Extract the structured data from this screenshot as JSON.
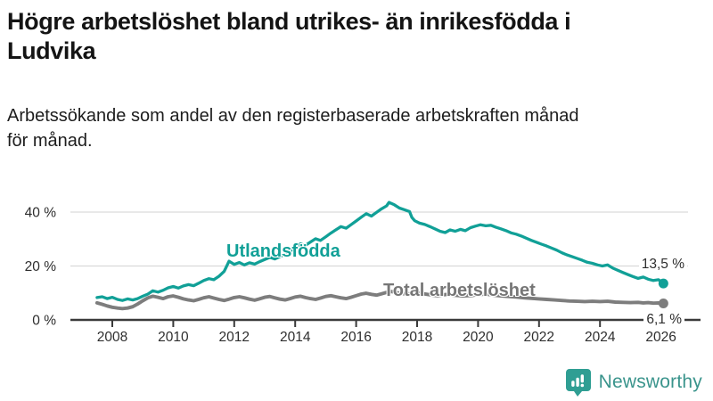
{
  "title_lines": [
    "Högre arbetslöshet bland utrikes- än inrikesfödda i",
    "Ludvika"
  ],
  "subtitle_lines": [
    "Arbetssökande som andel av den registerbaserade arbetskraften månad",
    "för månad."
  ],
  "footer": {
    "brand": "Newsworthy",
    "logo_icon": "bar-chart-speech-bubble-icon"
  },
  "colors": {
    "series_foreign_born": "#11A097",
    "series_total": "#7D7D7D",
    "grid": "#D9D9D9",
    "axis": "#3A3A3A",
    "text": "#1A1A1A",
    "brand_teal": "#2F9E93"
  },
  "chart_data": {
    "type": "line",
    "title": "Högre arbetslöshet bland utrikes- än inrikesfödda i Ludvika",
    "subtitle": "Arbetssökande som andel av den registerbaserade arbetskraften månad för månad.",
    "unit": "%",
    "grid": "horizontal",
    "legend_position": "inline-labels",
    "xlim": [
      2007.3,
      2026.4
    ],
    "ylim": [
      0,
      46
    ],
    "x_ticks": [
      2008,
      2010,
      2012,
      2014,
      2016,
      2018,
      2020,
      2022,
      2024,
      2026
    ],
    "x_tick_labels": [
      "2008",
      "2010",
      "2012",
      "2014",
      "2016",
      "2018",
      "2020",
      "2022",
      "2024",
      "2026"
    ],
    "y_ticks": [
      0,
      20,
      40
    ],
    "y_tick_labels": [
      "0 %",
      "20 %",
      "40 %"
    ],
    "series": [
      {
        "name": "Utlandsfödda",
        "color": "#11A097",
        "end_value": 13.5,
        "end_label": "13,5 %",
        "points": [
          [
            2007.5,
            8.3
          ],
          [
            2007.67,
            8.6
          ],
          [
            2007.83,
            7.9
          ],
          [
            2008.0,
            8.4
          ],
          [
            2008.17,
            7.6
          ],
          [
            2008.33,
            7.2
          ],
          [
            2008.5,
            7.8
          ],
          [
            2008.67,
            7.4
          ],
          [
            2008.83,
            7.9
          ],
          [
            2009.0,
            8.8
          ],
          [
            2009.17,
            9.6
          ],
          [
            2009.33,
            10.8
          ],
          [
            2009.5,
            10.3
          ],
          [
            2009.67,
            11.0
          ],
          [
            2009.83,
            11.9
          ],
          [
            2010.0,
            12.4
          ],
          [
            2010.17,
            11.8
          ],
          [
            2010.33,
            12.6
          ],
          [
            2010.5,
            13.1
          ],
          [
            2010.67,
            12.7
          ],
          [
            2010.83,
            13.6
          ],
          [
            2011.0,
            14.6
          ],
          [
            2011.17,
            15.3
          ],
          [
            2011.33,
            14.9
          ],
          [
            2011.5,
            16.2
          ],
          [
            2011.67,
            18.0
          ],
          [
            2011.83,
            21.8
          ],
          [
            2012.0,
            20.6
          ],
          [
            2012.17,
            21.3
          ],
          [
            2012.33,
            20.4
          ],
          [
            2012.5,
            21.2
          ],
          [
            2012.67,
            20.7
          ],
          [
            2012.83,
            21.6
          ],
          [
            2013.0,
            22.4
          ],
          [
            2013.17,
            23.2
          ],
          [
            2013.33,
            22.6
          ],
          [
            2013.5,
            23.5
          ],
          [
            2013.67,
            24.3
          ],
          [
            2013.83,
            25.4
          ],
          [
            2014.0,
            26.8
          ],
          [
            2014.17,
            28.2
          ],
          [
            2014.33,
            27.6
          ],
          [
            2014.5,
            28.9
          ],
          [
            2014.67,
            30.1
          ],
          [
            2014.83,
            29.5
          ],
          [
            2015.0,
            30.8
          ],
          [
            2015.17,
            32.2
          ],
          [
            2015.33,
            33.4
          ],
          [
            2015.5,
            34.6
          ],
          [
            2015.67,
            34.0
          ],
          [
            2015.83,
            35.3
          ],
          [
            2016.0,
            36.7
          ],
          [
            2016.17,
            38.1
          ],
          [
            2016.33,
            39.4
          ],
          [
            2016.5,
            38.5
          ],
          [
            2016.67,
            39.9
          ],
          [
            2016.83,
            41.2
          ],
          [
            2017.0,
            42.3
          ],
          [
            2017.08,
            43.6
          ],
          [
            2017.25,
            42.7
          ],
          [
            2017.42,
            41.5
          ],
          [
            2017.58,
            40.9
          ],
          [
            2017.75,
            40.2
          ],
          [
            2017.83,
            38.0
          ],
          [
            2017.92,
            36.8
          ],
          [
            2018.08,
            35.9
          ],
          [
            2018.25,
            35.4
          ],
          [
            2018.42,
            34.6
          ],
          [
            2018.58,
            33.8
          ],
          [
            2018.75,
            32.9
          ],
          [
            2018.92,
            32.4
          ],
          [
            2019.08,
            33.4
          ],
          [
            2019.25,
            32.9
          ],
          [
            2019.42,
            33.6
          ],
          [
            2019.58,
            33.1
          ],
          [
            2019.75,
            34.2
          ],
          [
            2019.92,
            34.8
          ],
          [
            2020.08,
            35.3
          ],
          [
            2020.25,
            34.9
          ],
          [
            2020.42,
            35.1
          ],
          [
            2020.58,
            34.4
          ],
          [
            2020.75,
            33.8
          ],
          [
            2020.92,
            33.1
          ],
          [
            2021.08,
            32.3
          ],
          [
            2021.25,
            31.8
          ],
          [
            2021.42,
            31.1
          ],
          [
            2021.58,
            30.3
          ],
          [
            2021.75,
            29.5
          ],
          [
            2021.92,
            28.8
          ],
          [
            2022.08,
            28.1
          ],
          [
            2022.25,
            27.4
          ],
          [
            2022.42,
            26.6
          ],
          [
            2022.58,
            25.9
          ],
          [
            2022.75,
            24.9
          ],
          [
            2022.92,
            24.1
          ],
          [
            2023.08,
            23.5
          ],
          [
            2023.25,
            22.8
          ],
          [
            2023.42,
            22.1
          ],
          [
            2023.58,
            21.4
          ],
          [
            2023.75,
            21.0
          ],
          [
            2023.92,
            20.4
          ],
          [
            2024.08,
            20.0
          ],
          [
            2024.25,
            20.4
          ],
          [
            2024.42,
            19.2
          ],
          [
            2024.58,
            18.4
          ],
          [
            2024.75,
            17.6
          ],
          [
            2024.92,
            16.8
          ],
          [
            2025.08,
            16.1
          ],
          [
            2025.25,
            15.4
          ],
          [
            2025.42,
            15.9
          ],
          [
            2025.58,
            15.1
          ],
          [
            2025.75,
            14.6
          ],
          [
            2025.92,
            14.9
          ],
          [
            2026.08,
            13.5
          ]
        ]
      },
      {
        "name": "Total arbetslöshet",
        "color": "#7D7D7D",
        "end_value": 6.1,
        "end_label": "6,1 %",
        "points": [
          [
            2007.5,
            6.3
          ],
          [
            2007.67,
            5.8
          ],
          [
            2007.83,
            5.2
          ],
          [
            2008.0,
            4.7
          ],
          [
            2008.17,
            4.4
          ],
          [
            2008.33,
            4.2
          ],
          [
            2008.5,
            4.4
          ],
          [
            2008.67,
            4.9
          ],
          [
            2008.83,
            5.9
          ],
          [
            2009.0,
            7.1
          ],
          [
            2009.17,
            8.2
          ],
          [
            2009.33,
            8.8
          ],
          [
            2009.5,
            8.4
          ],
          [
            2009.67,
            7.9
          ],
          [
            2009.83,
            8.6
          ],
          [
            2010.0,
            8.9
          ],
          [
            2010.17,
            8.4
          ],
          [
            2010.33,
            7.8
          ],
          [
            2010.5,
            7.4
          ],
          [
            2010.67,
            7.1
          ],
          [
            2010.83,
            7.6
          ],
          [
            2011.0,
            8.2
          ],
          [
            2011.17,
            8.6
          ],
          [
            2011.33,
            8.1
          ],
          [
            2011.5,
            7.6
          ],
          [
            2011.67,
            7.2
          ],
          [
            2011.83,
            7.7
          ],
          [
            2012.0,
            8.3
          ],
          [
            2012.17,
            8.6
          ],
          [
            2012.33,
            8.2
          ],
          [
            2012.5,
            7.7
          ],
          [
            2012.67,
            7.3
          ],
          [
            2012.83,
            7.8
          ],
          [
            2013.0,
            8.4
          ],
          [
            2013.17,
            8.7
          ],
          [
            2013.33,
            8.2
          ],
          [
            2013.5,
            7.7
          ],
          [
            2013.67,
            7.4
          ],
          [
            2013.83,
            7.9
          ],
          [
            2014.0,
            8.5
          ],
          [
            2014.17,
            8.8
          ],
          [
            2014.33,
            8.3
          ],
          [
            2014.5,
            7.9
          ],
          [
            2014.67,
            7.6
          ],
          [
            2014.83,
            8.1
          ],
          [
            2015.0,
            8.7
          ],
          [
            2015.17,
            9.0
          ],
          [
            2015.33,
            8.6
          ],
          [
            2015.5,
            8.2
          ],
          [
            2015.67,
            7.9
          ],
          [
            2015.83,
            8.4
          ],
          [
            2016.0,
            9.0
          ],
          [
            2016.17,
            9.6
          ],
          [
            2016.33,
            9.9
          ],
          [
            2016.5,
            9.5
          ],
          [
            2016.67,
            9.2
          ],
          [
            2016.83,
            9.7
          ],
          [
            2017.0,
            10.2
          ],
          [
            2017.17,
            10.5
          ],
          [
            2017.33,
            10.1
          ],
          [
            2017.5,
            9.8
          ],
          [
            2017.67,
            9.6
          ],
          [
            2017.83,
            9.9
          ],
          [
            2018.0,
            10.1
          ],
          [
            2018.17,
            9.8
          ],
          [
            2018.33,
            9.5
          ],
          [
            2018.5,
            9.2
          ],
          [
            2018.67,
            9.0
          ],
          [
            2018.83,
            9.3
          ],
          [
            2019.0,
            9.5
          ],
          [
            2019.17,
            9.2
          ],
          [
            2019.5,
            8.9
          ],
          [
            2019.83,
            9.1
          ],
          [
            2020.0,
            9.4
          ],
          [
            2020.25,
            9.6
          ],
          [
            2020.5,
            9.2
          ],
          [
            2020.75,
            8.9
          ],
          [
            2021.0,
            8.7
          ],
          [
            2021.25,
            8.5
          ],
          [
            2021.5,
            8.2
          ],
          [
            2021.75,
            8.0
          ],
          [
            2022.0,
            7.8
          ],
          [
            2022.25,
            7.6
          ],
          [
            2022.5,
            7.4
          ],
          [
            2022.75,
            7.2
          ],
          [
            2023.0,
            7.0
          ],
          [
            2023.25,
            6.9
          ],
          [
            2023.5,
            6.8
          ],
          [
            2023.75,
            6.9
          ],
          [
            2024.0,
            6.8
          ],
          [
            2024.25,
            6.9
          ],
          [
            2024.5,
            6.6
          ],
          [
            2024.75,
            6.5
          ],
          [
            2025.0,
            6.4
          ],
          [
            2025.25,
            6.5
          ],
          [
            2025.42,
            6.3
          ],
          [
            2025.58,
            6.4
          ],
          [
            2025.75,
            6.2
          ],
          [
            2025.92,
            6.3
          ],
          [
            2026.08,
            6.1
          ]
        ]
      }
    ]
  }
}
